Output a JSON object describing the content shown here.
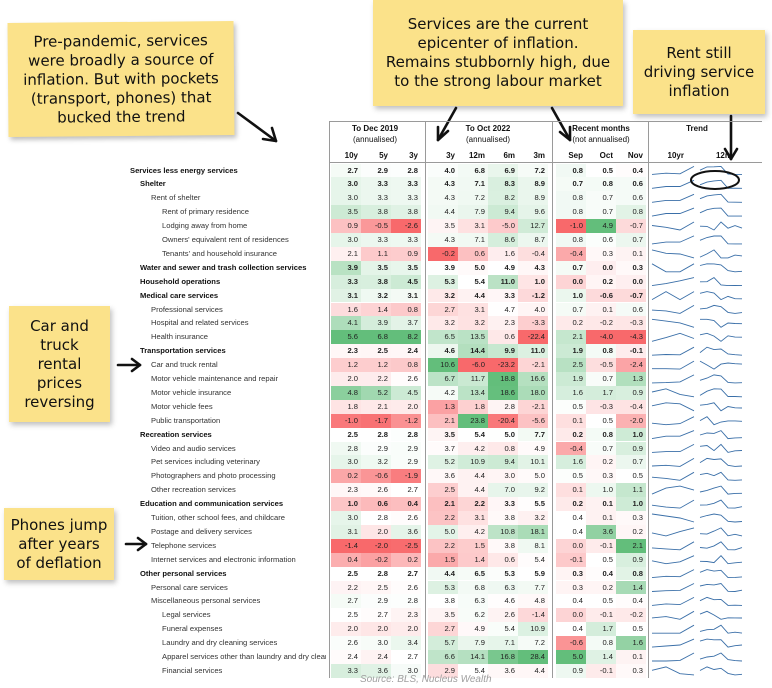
{
  "notes": [
    {
      "id": "note-pre-pandemic",
      "text": "Pre-pandemic, services\nwere broadly a source of\ninflation. But with pockets\n(transport, phones) that\nbucked the trend"
    },
    {
      "id": "note-services",
      "text": "Services are the current\nepicenter of inflation.\nRemains stubbornly high, due\nto the strong labour market"
    },
    {
      "id": "note-rent",
      "text": "Rent still\ndriving service\ninflation"
    },
    {
      "id": "note-car",
      "text": "Car and\ntruck\nrental\nprices\nreversing"
    },
    {
      "id": "note-phones",
      "text": "Phones jump\nafter years\nof deflation"
    }
  ],
  "headers": {
    "group1": {
      "title": "To Dec 2019",
      "sub": "(annualised)"
    },
    "group2": {
      "title": "To Oct 2022",
      "sub": "(annualised)"
    },
    "group3": {
      "title": "Recent months",
      "sub": "(not annualised)"
    },
    "group4": {
      "title": "Trend"
    },
    "cols": [
      "10y",
      "5y",
      "3y",
      "3y",
      "12m",
      "6m",
      "3m",
      "Sep",
      "Oct",
      "Nov"
    ],
    "trend_cols": [
      "10yr",
      "12m"
    ]
  },
  "source": "Source: BLS, Nucleus Wealth",
  "colors": {
    "green": "#63be7b",
    "red": "#f8696b",
    "white": "#ffffff",
    "spark": "#3a6fa8",
    "note": "#fbe28a"
  },
  "chart_data": {
    "type": "table",
    "columns": [
      "10y",
      "5y",
      "3y",
      "3y",
      "12m",
      "6m",
      "3m",
      "Sep",
      "Oct",
      "Nov"
    ],
    "rows": [
      {
        "label": "Services less energy services",
        "level": 0,
        "values": [
          2.7,
          2.9,
          2.8,
          4.0,
          6.8,
          6.9,
          7.2,
          0.8,
          0.5,
          0.4
        ]
      },
      {
        "label": "Shelter",
        "level": 1,
        "values": [
          3.0,
          3.3,
          3.3,
          4.3,
          7.1,
          8.3,
          8.9,
          0.7,
          0.8,
          0.6
        ]
      },
      {
        "label": "Rent of shelter",
        "level": 2,
        "values": [
          3.0,
          3.3,
          3.3,
          4.3,
          7.2,
          8.2,
          8.9,
          0.8,
          0.7,
          0.6
        ]
      },
      {
        "label": "Rent of primary residence",
        "level": 3,
        "values": [
          3.5,
          3.8,
          3.8,
          4.4,
          7.9,
          9.4,
          9.6,
          0.8,
          0.7,
          0.8
        ]
      },
      {
        "label": "Lodging away from home",
        "level": 3,
        "values": [
          0.9,
          -0.5,
          -2.6,
          3.5,
          3.1,
          -5.0,
          12.7,
          -1.0,
          4.9,
          -0.7
        ]
      },
      {
        "label": "Owners' equivalent rent of residences",
        "level": 3,
        "values": [
          3.0,
          3.3,
          3.3,
          4.3,
          7.1,
          8.6,
          8.7,
          0.8,
          0.6,
          0.7
        ]
      },
      {
        "label": "Tenants' and household insurance",
        "level": 3,
        "values": [
          2.1,
          1.1,
          0.9,
          -0.2,
          0.6,
          1.6,
          -0.4,
          -0.4,
          0.3,
          0.1
        ]
      },
      {
        "label": "Water and sewer and trash collection services",
        "level": 1,
        "values": [
          3.9,
          3.5,
          3.5,
          3.9,
          5.0,
          4.9,
          4.3,
          0.7,
          0.0,
          0.3
        ]
      },
      {
        "label": "Household operations",
        "level": 1,
        "values": [
          3.3,
          3.8,
          4.5,
          5.3,
          5.4,
          11.0,
          1.0,
          0.0,
          0.2,
          0.0
        ]
      },
      {
        "label": "Medical care services",
        "level": 1,
        "values": [
          3.1,
          3.2,
          3.1,
          3.2,
          4.4,
          3.3,
          -1.2,
          1.0,
          -0.6,
          -0.7
        ]
      },
      {
        "label": "Professional services",
        "level": 2,
        "values": [
          1.6,
          1.4,
          0.8,
          2.7,
          3.1,
          4.7,
          4.0,
          0.7,
          0.1,
          0.6
        ]
      },
      {
        "label": "Hospital and related services",
        "level": 2,
        "values": [
          4.1,
          3.9,
          3.7,
          3.2,
          3.2,
          2.3,
          -3.3,
          0.2,
          -0.2,
          -0.3
        ]
      },
      {
        "label": "Health insurance",
        "level": 2,
        "values": [
          5.6,
          6.8,
          8.2,
          6.5,
          13.5,
          0.6,
          -22.4,
          2.1,
          -4.0,
          -4.3
        ]
      },
      {
        "label": "Transportation services",
        "level": 1,
        "values": [
          2.3,
          2.5,
          2.4,
          4.6,
          14.4,
          9.9,
          11.0,
          1.9,
          0.8,
          -0.1
        ]
      },
      {
        "label": "Car and truck rental",
        "level": 2,
        "values": [
          1.2,
          1.2,
          0.8,
          10.6,
          -6.0,
          -23.2,
          -2.1,
          2.5,
          -0.5,
          -2.4
        ]
      },
      {
        "label": "Motor vehicle maintenance and repair",
        "level": 2,
        "values": [
          2.0,
          2.2,
          2.6,
          6.7,
          11.7,
          18.8,
          16.6,
          1.9,
          0.7,
          1.3
        ]
      },
      {
        "label": "Motor vehicle insurance",
        "level": 2,
        "values": [
          4.8,
          5.2,
          4.5,
          4.2,
          13.4,
          18.6,
          18.0,
          1.6,
          1.7,
          0.9
        ]
      },
      {
        "label": "Motor vehicle fees",
        "level": 2,
        "values": [
          1.8,
          2.1,
          2.0,
          1.3,
          1.8,
          2.8,
          -2.1,
          0.5,
          -0.3,
          -0.4
        ]
      },
      {
        "label": "Public transportation",
        "level": 2,
        "values": [
          -1.0,
          -1.7,
          -1.2,
          2.1,
          23.8,
          -20.4,
          -5.6,
          0.1,
          0.5,
          -2.0
        ]
      },
      {
        "label": "Recreation services",
        "level": 1,
        "values": [
          2.5,
          2.8,
          2.8,
          3.5,
          5.4,
          5.0,
          7.7,
          0.2,
          0.8,
          1.0
        ]
      },
      {
        "label": "Video and audio services",
        "level": 2,
        "values": [
          2.8,
          2.9,
          2.9,
          3.7,
          4.2,
          0.8,
          4.9,
          -0.4,
          0.7,
          0.9
        ]
      },
      {
        "label": "Pet services including veterinary",
        "level": 2,
        "values": [
          3.0,
          3.2,
          2.9,
          5.2,
          10.9,
          9.4,
          10.1,
          1.6,
          0.2,
          0.7
        ]
      },
      {
        "label": "Photographers and photo processing",
        "level": 2,
        "values": [
          0.2,
          -0.6,
          -1.9,
          3.6,
          4.4,
          3.0,
          5.0,
          0.5,
          0.3,
          0.5
        ]
      },
      {
        "label": "Other recreation services",
        "level": 2,
        "values": [
          2.3,
          2.6,
          2.7,
          2.5,
          4.4,
          7.0,
          9.2,
          0.1,
          1.0,
          1.1
        ]
      },
      {
        "label": "Education and communication services",
        "level": 1,
        "values": [
          1.0,
          0.6,
          0.4,
          2.1,
          2.2,
          3.3,
          5.5,
          0.2,
          0.1,
          1.0
        ]
      },
      {
        "label": "Tuition, other school fees, and childcare",
        "level": 2,
        "values": [
          3.0,
          2.8,
          2.6,
          2.2,
          3.1,
          3.8,
          3.2,
          0.4,
          0.1,
          0.3
        ]
      },
      {
        "label": "Postage and delivery services",
        "level": 2,
        "values": [
          3.1,
          2.0,
          3.6,
          5.0,
          4.2,
          10.8,
          18.1,
          0.4,
          3.6,
          0.2
        ]
      },
      {
        "label": "Telephone services",
        "level": 2,
        "values": [
          -1.4,
          -2.0,
          -2.5,
          2.2,
          1.5,
          3.8,
          8.1,
          0.0,
          -0.1,
          2.1
        ]
      },
      {
        "label": "Internet services and electronic information",
        "level": 2,
        "values": [
          0.4,
          -0.2,
          0.2,
          1.5,
          1.4,
          0.6,
          5.4,
          -0.1,
          0.5,
          0.9
        ]
      },
      {
        "label": "Other personal services",
        "level": 1,
        "values": [
          2.5,
          2.8,
          2.7,
          4.4,
          6.5,
          5.3,
          5.9,
          0.3,
          0.4,
          0.8
        ]
      },
      {
        "label": "Personal care services",
        "level": 2,
        "values": [
          2.2,
          2.5,
          2.6,
          5.3,
          6.8,
          6.3,
          7.7,
          0.3,
          0.2,
          1.4
        ]
      },
      {
        "label": "Miscellaneous personal services",
        "level": 2,
        "values": [
          2.7,
          2.9,
          2.8,
          3.8,
          6.3,
          4.6,
          4.8,
          0.4,
          0.5,
          0.4
        ]
      },
      {
        "label": "Legal services",
        "level": 3,
        "values": [
          2.5,
          2.7,
          2.3,
          3.5,
          6.2,
          2.6,
          -1.4,
          0.0,
          -0.1,
          -0.2
        ]
      },
      {
        "label": "Funeral expenses",
        "level": 3,
        "values": [
          2.0,
          2.0,
          2.0,
          2.7,
          4.9,
          5.4,
          10.9,
          0.4,
          1.7,
          0.5
        ]
      },
      {
        "label": "Laundry and dry cleaning services",
        "level": 3,
        "values": [
          2.6,
          3.0,
          3.4,
          5.7,
          7.9,
          7.1,
          7.2,
          -0.6,
          0.8,
          1.6
        ]
      },
      {
        "label": "Apparel services other than laundry and dry cleaning",
        "level": 3,
        "values": [
          2.4,
          2.4,
          2.7,
          6.6,
          14.1,
          16.8,
          28.4,
          5.0,
          1.4,
          0.1
        ]
      },
      {
        "label": "Financial services",
        "level": 3,
        "values": [
          3.3,
          3.6,
          3.0,
          2.9,
          5.4,
          3.6,
          4.4,
          0.9,
          -0.1,
          0.3
        ]
      }
    ]
  }
}
